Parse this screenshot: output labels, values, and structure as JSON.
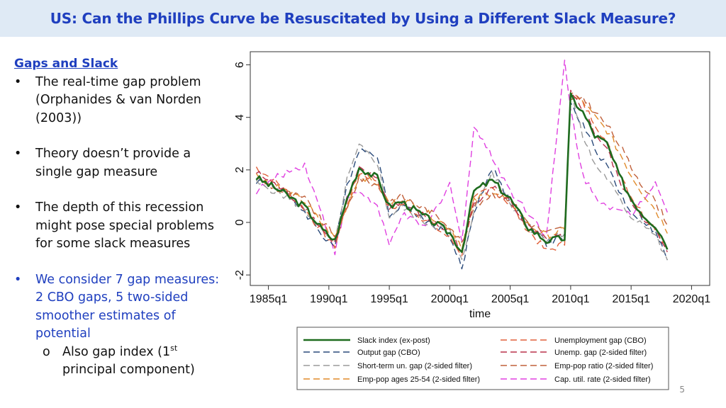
{
  "slide": {
    "title": "US: Can the Phillips Curve be Resuscitated by Using a Different Slack Measure?",
    "page_number": "5"
  },
  "bullets": {
    "heading": "Gaps and Slack",
    "marker": "•",
    "sub_marker": "o",
    "items": [
      {
        "text": "The real-time gap problem (Orphanides & van Norden (2003))"
      },
      {
        "text": "Theory doesn’t provide a single gap measure"
      },
      {
        "text": "The depth of this recession might pose special problems for some slack measures"
      },
      {
        "text": "We consider 7 gap measures: 2 CBO gaps, 5 two-sided smoother estimates of potential"
      }
    ],
    "sub_item_prefix": "Also gap index (1",
    "sub_item_sup": "st",
    "sub_item_suffix": " principal component)"
  },
  "colors": {
    "title_bg": "#dfeaf5",
    "title_text": "#1f3fbf",
    "accent_blue": "#1f3fbf"
  },
  "chart_data": {
    "type": "line",
    "title": "",
    "xlabel": "time",
    "ylabel": "",
    "xlim": [
      1983.5,
      2021.5
    ],
    "ylim": [
      -2.4,
      6.5
    ],
    "x_ticks": [
      1985,
      1990,
      1995,
      2000,
      2005,
      2010,
      2015,
      2020
    ],
    "x_tick_labels": [
      "1985q1",
      "1990q1",
      "1995q1",
      "2000q1",
      "2005q1",
      "2010q1",
      "2015q1",
      "2020q1"
    ],
    "y_ticks": [
      -2,
      0,
      2,
      4,
      6
    ],
    "y_tick_labels": [
      "-2",
      "0",
      "2",
      "4",
      "6"
    ],
    "x_anchor": [
      1984,
      1986,
      1988,
      1989.5,
      1990.5,
      1991.5,
      1992.5,
      1994,
      1995,
      1996,
      1998,
      2000,
      2001,
      2002,
      2003.5,
      2005,
      2006.5,
      2008,
      2009.5,
      2010,
      2011,
      2012,
      2013,
      2014,
      2015,
      2016,
      2017,
      2018
    ],
    "legend": {
      "placement": "below",
      "columns": 2
    },
    "series": [
      {
        "name": "Slack index (ex-post)",
        "color": "#1e6b1e",
        "dash": "solid",
        "width": 2.6,
        "legend_col": 0,
        "values": [
          1.7,
          1.2,
          0.6,
          -0.3,
          -0.7,
          0.9,
          2.1,
          1.7,
          0.6,
          0.8,
          0.2,
          -0.4,
          -1.1,
          1.2,
          1.6,
          0.9,
          -0.2,
          -0.7,
          -0.6,
          4.8,
          4.2,
          3.3,
          3.0,
          1.8,
          0.9,
          0.3,
          -0.1,
          -0.9
        ]
      },
      {
        "name": "Output gap (CBO)",
        "color": "#2a4a7a",
        "dash": "9,5",
        "width": 1.4,
        "legend_col": 0,
        "values": [
          1.6,
          1.3,
          0.4,
          -0.5,
          -0.9,
          1.4,
          2.8,
          2.6,
          0.3,
          0.7,
          0.1,
          -0.5,
          -1.8,
          0.4,
          2.1,
          0.8,
          -0.1,
          -0.8,
          -0.5,
          4.5,
          3.7,
          2.8,
          2.2,
          1.2,
          0.4,
          0.1,
          -0.4,
          -1.4
        ]
      },
      {
        "name": "Short-term un. gap (2-sided filter)",
        "color": "#9a9a9a",
        "dash": "9,5",
        "width": 1.4,
        "legend_col": 0,
        "values": [
          1.5,
          1.1,
          0.5,
          -0.4,
          -0.8,
          1.6,
          2.9,
          2.3,
          0.2,
          0.6,
          0.0,
          -0.3,
          -1.5,
          0.5,
          1.9,
          0.7,
          -0.2,
          -0.6,
          -0.4,
          4.9,
          3.3,
          2.2,
          1.7,
          0.9,
          0.2,
          0.0,
          -0.5,
          -1.5
        ]
      },
      {
        "name": "Emp-pop ages 25-54 (2-sided filter)",
        "color": "#e08a2a",
        "dash": "9,5",
        "width": 1.4,
        "legend_col": 0,
        "values": [
          1.8,
          1.3,
          0.8,
          -0.1,
          -0.6,
          0.6,
          1.8,
          1.5,
          0.7,
          0.9,
          0.4,
          -0.2,
          -0.9,
          0.8,
          1.2,
          0.8,
          -0.1,
          -0.5,
          -0.3,
          4.8,
          4.6,
          4.0,
          3.5,
          2.7,
          1.8,
          1.1,
          0.5,
          -0.3
        ]
      },
      {
        "name": "Unemployment gap (CBO)",
        "color": "#e0603a",
        "dash": "9,5",
        "width": 1.4,
        "legend_col": 1,
        "values": [
          2.1,
          1.4,
          0.5,
          -0.4,
          -0.9,
          0.7,
          1.9,
          1.6,
          0.5,
          0.7,
          0.1,
          -0.6,
          -1.2,
          0.9,
          1.3,
          0.7,
          -0.3,
          -1.1,
          -0.8,
          5.0,
          4.5,
          3.8,
          3.0,
          2.0,
          1.0,
          0.3,
          -0.2,
          -1.0
        ]
      },
      {
        "name": "Unemp. gap (2-sided filter)",
        "color": "#b8304a",
        "dash": "9,5",
        "width": 1.4,
        "legend_col": 1,
        "values": [
          1.9,
          1.3,
          0.6,
          -0.3,
          -0.8,
          0.8,
          2.0,
          1.7,
          0.6,
          0.8,
          0.2,
          -0.4,
          -1.1,
          0.7,
          1.4,
          0.8,
          -0.2,
          -0.7,
          -0.5,
          4.9,
          4.3,
          3.4,
          2.8,
          1.6,
          0.8,
          0.2,
          -0.3,
          -1.2
        ]
      },
      {
        "name": "Emp-pop ratio (2-sided filter)",
        "color": "#c0603a",
        "dash": "9,5",
        "width": 1.4,
        "legend_col": 1,
        "values": [
          1.7,
          1.2,
          0.9,
          0.0,
          -0.5,
          0.5,
          1.7,
          1.4,
          0.8,
          1.0,
          0.5,
          -0.1,
          -0.8,
          0.6,
          1.1,
          0.9,
          0.0,
          -0.4,
          -0.2,
          4.6,
          4.8,
          4.2,
          3.7,
          3.0,
          2.1,
          1.4,
          0.8,
          0.0
        ]
      },
      {
        "name": "Cap. util. rate (2-sided filter)",
        "color": "#e040e0",
        "dash": "9,5",
        "width": 1.4,
        "legend_col": 1,
        "values": [
          1.2,
          1.8,
          2.2,
          0.2,
          -1.1,
          0.9,
          1.2,
          0.6,
          -0.9,
          0.3,
          -0.2,
          1.5,
          -0.8,
          3.7,
          2.5,
          1.2,
          0.4,
          -0.5,
          6.1,
          4.3,
          1.8,
          1.0,
          0.7,
          0.4,
          0.3,
          0.9,
          1.6,
          0.4
        ]
      }
    ]
  }
}
